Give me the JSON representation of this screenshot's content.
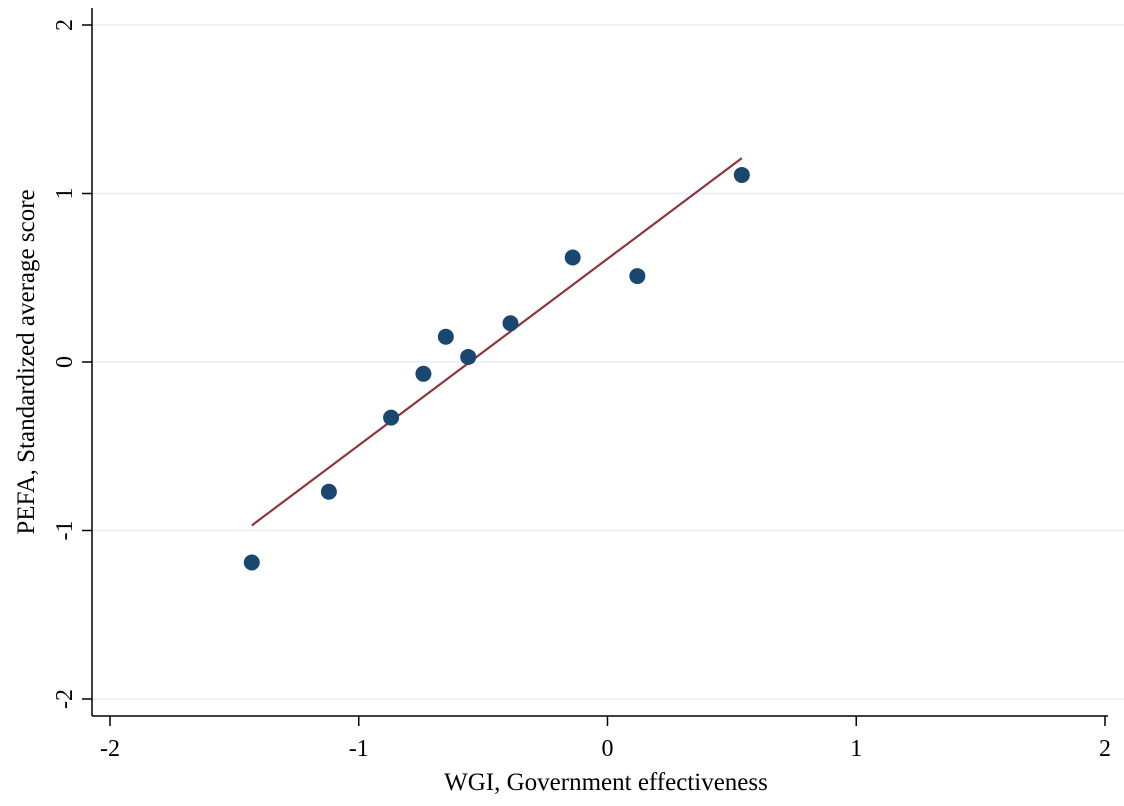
{
  "chart_data": {
    "type": "scatter",
    "title": "",
    "xlabel": "WGI, Government effectiveness",
    "ylabel": "PEFA, Standardized average score",
    "xlim": [
      -2,
      2
    ],
    "ylim": [
      -2,
      2
    ],
    "xticks": [
      -2,
      -1,
      0,
      1,
      2
    ],
    "yticks": [
      -2,
      -1,
      0,
      1,
      2
    ],
    "xtick_labels": [
      "-2",
      "-1",
      "0",
      "1",
      "2"
    ],
    "ytick_labels": [
      "-2",
      "-1",
      "0",
      "1",
      "2"
    ],
    "grid": true,
    "series": [
      {
        "type": "scatter",
        "color": "#1a476f",
        "points": [
          {
            "x": -1.43,
            "y": -1.19
          },
          {
            "x": -1.12,
            "y": -0.77
          },
          {
            "x": -0.87,
            "y": -0.33
          },
          {
            "x": -0.74,
            "y": -0.07
          },
          {
            "x": -0.65,
            "y": 0.15
          },
          {
            "x": -0.56,
            "y": 0.03
          },
          {
            "x": -0.39,
            "y": 0.23
          },
          {
            "x": -0.14,
            "y": 0.62
          },
          {
            "x": 0.12,
            "y": 0.51
          },
          {
            "x": 0.54,
            "y": 1.11
          }
        ]
      },
      {
        "type": "line",
        "color": "#90353b",
        "points": [
          {
            "x": -1.43,
            "y": -0.97
          },
          {
            "x": 0.54,
            "y": 1.21
          }
        ]
      }
    ]
  }
}
